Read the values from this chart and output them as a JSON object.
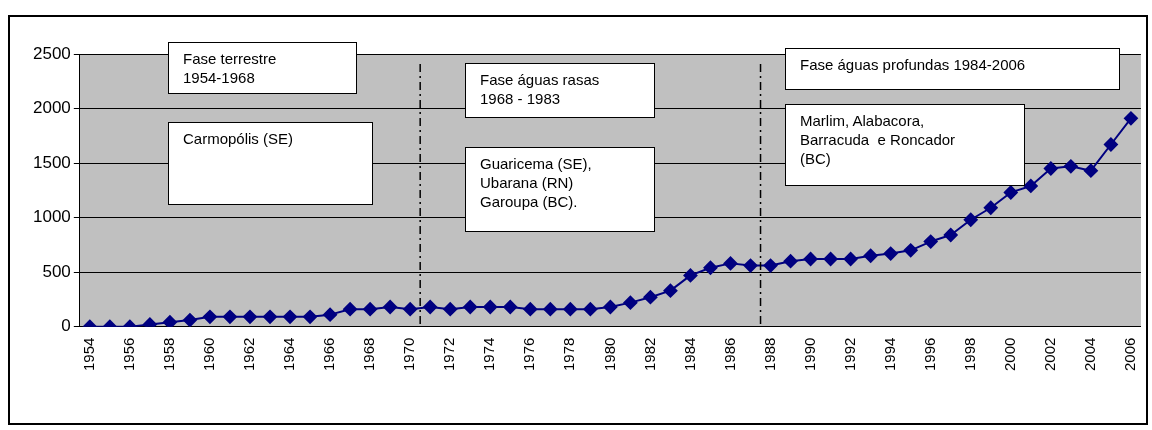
{
  "chart_data": {
    "type": "line",
    "x": [
      1954,
      1955,
      1956,
      1957,
      1958,
      1959,
      1960,
      1961,
      1962,
      1963,
      1964,
      1965,
      1966,
      1967,
      1968,
      1969,
      1970,
      1971,
      1972,
      1973,
      1974,
      1975,
      1976,
      1977,
      1978,
      1979,
      1980,
      1981,
      1982,
      1983,
      1984,
      1985,
      1986,
      1987,
      1988,
      1989,
      1990,
      1991,
      1992,
      1993,
      1994,
      1995,
      1996,
      1997,
      1998,
      1999,
      2000,
      2001,
      2002,
      2003,
      2004,
      2005,
      2006
    ],
    "series": [
      {
        "color": "#000080",
        "values": [
          0,
          0,
          0,
          20,
          40,
          60,
          90,
          90,
          90,
          90,
          90,
          90,
          110,
          160,
          160,
          180,
          160,
          180,
          160,
          180,
          180,
          180,
          160,
          160,
          160,
          160,
          180,
          220,
          270,
          330,
          470,
          540,
          580,
          560,
          560,
          600,
          620,
          620,
          620,
          650,
          670,
          700,
          780,
          840,
          980,
          1090,
          1230,
          1290,
          1450,
          1470,
          1430,
          1670,
          1910
        ]
      }
    ],
    "xlim": [
      1953.5,
      2006.5
    ],
    "xticks": [
      1954,
      1956,
      1958,
      1960,
      1962,
      1964,
      1966,
      1968,
      1970,
      1972,
      1974,
      1976,
      1978,
      1980,
      1982,
      1984,
      1986,
      1988,
      1990,
      1992,
      1994,
      1996,
      1998,
      2000,
      2002,
      2004,
      2006
    ],
    "ylim": [
      0,
      2500
    ],
    "yticks": [
      0,
      500,
      1000,
      1500,
      2000,
      2500
    ],
    "grid": "y",
    "legend": false,
    "marker": "diamond",
    "line_style": "solid",
    "ref_lines": [
      {
        "axis": "x",
        "value": 1970.5,
        "line_style": "dashed",
        "color": "#000000"
      },
      {
        "axis": "x",
        "value": 1987.5,
        "line_style": "dashed",
        "color": "#000000"
      }
    ],
    "annotations": [
      "Fase terrestre\n1954-1968",
      "Carmopólis (SE)",
      "Fase águas rasas\n1968 - 1983",
      "Guaricema (SE),\nUbarana (RN)\nGaroupa (BC).",
      "Fase águas profundas 1984-2006",
      "Marlim, Alabacora,\nBarracuda  e Roncador\n(BC)"
    ]
  }
}
